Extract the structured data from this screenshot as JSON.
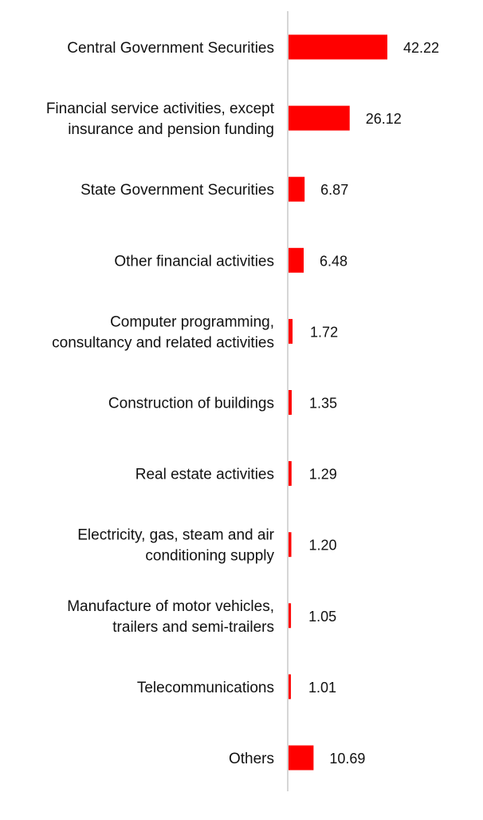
{
  "chart_data": {
    "type": "bar",
    "orientation": "horizontal",
    "categories": [
      [
        "Central Government Securities"
      ],
      [
        "Financial service activities, except",
        "insurance and pension funding"
      ],
      [
        "State Government Securities"
      ],
      [
        "Other financial activities"
      ],
      [
        "Computer programming,",
        "consultancy and related activities"
      ],
      [
        "Construction of buildings"
      ],
      [
        "Real estate activities"
      ],
      [
        "Electricity, gas, steam and air",
        "conditioning supply"
      ],
      [
        "Manufacture of motor vehicles,",
        "trailers and semi-trailers"
      ],
      [
        "Telecommunications"
      ],
      [
        "Others"
      ]
    ],
    "values": [
      42.22,
      26.12,
      6.87,
      6.48,
      1.72,
      1.35,
      1.29,
      1.2,
      1.05,
      1.01,
      10.69
    ],
    "value_labels": [
      "42.22",
      "26.12",
      "6.87",
      "6.48",
      "1.72",
      "1.35",
      "1.29",
      "1.20",
      "1.05",
      "1.01",
      "10.69"
    ],
    "bar_color": "#ff0000",
    "axis_color": "#c8c8c8",
    "title": "",
    "xlabel": "",
    "ylabel": "",
    "xlim": [
      0,
      42.22
    ],
    "grid": false,
    "legend": "none"
  }
}
